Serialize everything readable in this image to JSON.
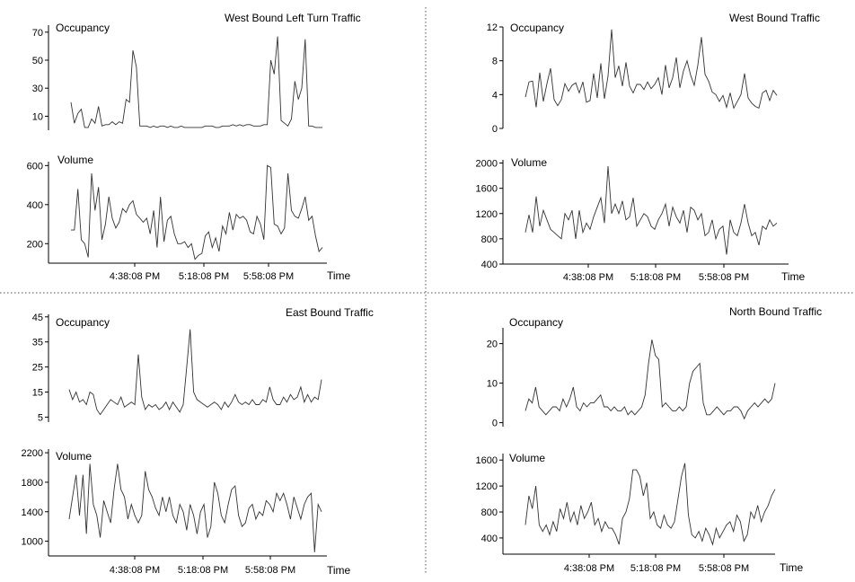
{
  "chart_data": [
    {
      "type": "line",
      "title": "West Bound Left Turn Traffic",
      "xlabel": "Time",
      "x_ticks": [
        "4:38:08 PM",
        "5:18:08 PM",
        "5:58:08 PM"
      ],
      "subplots": [
        {
          "ylabel": "Occupancy",
          "ylim": [
            0,
            75
          ],
          "yticks": [
            10,
            30,
            50,
            70
          ],
          "values": [
            20,
            5,
            12,
            15,
            2,
            2,
            8,
            5,
            17,
            3,
            4,
            4,
            6,
            4,
            6,
            5,
            22,
            20,
            57,
            45,
            3,
            3,
            3,
            2,
            3,
            2,
            3,
            3,
            2,
            3,
            2,
            2,
            3,
            2,
            2,
            2,
            2,
            2,
            2,
            3,
            3,
            3,
            2,
            2,
            3,
            3,
            3,
            4,
            3,
            4,
            3,
            4,
            4,
            3,
            3,
            3,
            4,
            4,
            50,
            40,
            67,
            7,
            5,
            3,
            8,
            35,
            22,
            30,
            65,
            3,
            3,
            2,
            2,
            2
          ]
        },
        {
          "ylabel": "Volume",
          "ylim": [
            100,
            620
          ],
          "yticks": [
            200,
            400,
            600
          ],
          "values": [
            270,
            270,
            480,
            220,
            200,
            130,
            560,
            370,
            490,
            220,
            300,
            440,
            330,
            280,
            310,
            380,
            360,
            400,
            420,
            350,
            330,
            310,
            330,
            250,
            370,
            180,
            440,
            210,
            320,
            340,
            250,
            200,
            200,
            210,
            180,
            200,
            120,
            140,
            150,
            240,
            260,
            180,
            230,
            160,
            290,
            250,
            360,
            270,
            350,
            330,
            340,
            320,
            260,
            250,
            340,
            300,
            220,
            600,
            590,
            300,
            290,
            250,
            280,
            560,
            370,
            340,
            330,
            380,
            440,
            320,
            340,
            240,
            160,
            180
          ]
        },
        {
          "ylabel": "",
          "ylim": [
            0,
            1
          ],
          "yticks": [],
          "values": []
        }
      ]
    },
    {
      "type": "line",
      "title": "West Bound Traffic",
      "xlabel": "Time",
      "x_ticks": [
        "4:38:08 PM",
        "5:18:08 PM",
        "5:58:08 PM"
      ],
      "subplots": [
        {
          "ylabel": "Occupancy",
          "ylim": [
            0,
            12
          ],
          "yticks": [
            0,
            4,
            8,
            12
          ],
          "values": [
            3.7,
            5.5,
            5.6,
            2.5,
            6.6,
            3.2,
            5.3,
            7.1,
            3.4,
            2.7,
            3.4,
            5.3,
            4.4,
            5.1,
            5.4,
            4.2,
            5.5,
            3.1,
            3.3,
            6.5,
            3.6,
            7.7,
            3.5,
            6.2,
            11.7,
            6.0,
            7.4,
            5.0,
            7.8,
            5.0,
            4.2,
            5.2,
            5.2,
            4.6,
            5.5,
            4.7,
            5.2,
            6.0,
            4.0,
            7.5,
            4.8,
            6.0,
            8.4,
            4.8,
            6.8,
            8.0,
            6.3,
            5.1,
            7.5,
            10.8,
            6.4,
            5.6,
            4.3,
            4.0,
            3.2,
            3.9,
            2.5,
            4.2,
            2.4,
            3.2,
            4.0,
            6.5,
            3.6,
            3.0,
            2.6,
            2.4,
            4.2,
            4.5,
            3.3,
            4.5,
            3.9
          ]
        },
        {
          "ylabel": "Volume",
          "ylim": [
            400,
            2050
          ],
          "yticks": [
            400,
            800,
            1200,
            1600,
            2000
          ],
          "values": [
            900,
            1180,
            900,
            1470,
            1000,
            1250,
            1100,
            950,
            900,
            850,
            800,
            1200,
            1100,
            1250,
            800,
            1250,
            900,
            1050,
            950,
            1150,
            1300,
            1450,
            1050,
            1950,
            1200,
            1350,
            1200,
            1400,
            1100,
            1150,
            1450,
            1000,
            1100,
            1200,
            1150,
            1000,
            950,
            1100,
            1200,
            1350,
            1000,
            1300,
            1150,
            1050,
            1250,
            900,
            1300,
            1250,
            1100,
            1200,
            850,
            900,
            1100,
            800,
            950,
            1000,
            550,
            1100,
            900,
            850,
            1050,
            1350,
            1050,
            850,
            900,
            700,
            1000,
            950,
            1100,
            1000,
            1050
          ]
        },
        {
          "ylabel": "",
          "ylim": [
            0,
            1
          ],
          "yticks": [],
          "values": []
        }
      ]
    },
    {
      "type": "line",
      "title": "East Bound Traffic",
      "xlabel": "Time",
      "x_ticks": [
        "4:38:08 PM",
        "5:18:08 PM",
        "5:58:08 PM"
      ],
      "subplots": [
        {
          "ylabel": "Occupancy",
          "ylim": [
            3,
            46
          ],
          "yticks": [
            5,
            15,
            25,
            35,
            45
          ],
          "values": [
            16,
            12,
            15,
            11,
            12,
            10,
            15,
            14,
            8,
            6,
            8,
            10,
            12,
            11,
            10,
            13,
            9,
            10,
            11,
            10,
            30,
            13,
            8,
            10,
            9,
            10,
            8,
            9,
            11,
            8,
            11,
            9,
            7,
            10,
            25,
            40,
            15,
            12,
            11,
            10,
            9,
            10,
            11,
            10,
            8,
            11,
            9,
            11,
            14,
            11,
            10,
            11,
            10,
            12,
            10,
            10,
            12,
            11,
            17,
            12,
            10,
            10,
            13,
            11,
            14,
            12,
            13,
            17,
            11,
            14,
            11,
            13,
            12,
            20
          ]
        },
        {
          "ylabel": "Volume",
          "ylim": [
            800,
            2250
          ],
          "yticks": [
            1000,
            1400,
            1800,
            2200
          ],
          "values": [
            1300,
            1600,
            1900,
            1350,
            1900,
            1100,
            2050,
            1500,
            1350,
            1050,
            1550,
            1400,
            1250,
            1700,
            2050,
            1700,
            1600,
            1300,
            1500,
            1350,
            1250,
            1350,
            1950,
            1700,
            1600,
            1450,
            1350,
            1600,
            1400,
            1600,
            1350,
            1250,
            1500,
            1400,
            1150,
            1500,
            1350,
            1100,
            1400,
            1500,
            1050,
            1200,
            1800,
            1650,
            1350,
            1250,
            1500,
            1700,
            1750,
            1350,
            1200,
            1250,
            1450,
            1500,
            1300,
            1400,
            1350,
            1550,
            1500,
            1400,
            1650,
            1550,
            1650,
            1500,
            1300,
            1600,
            1450,
            1300,
            1500,
            1600,
            1650,
            850,
            1500,
            1400
          ]
        },
        {
          "ylabel": "",
          "ylim": [
            0,
            1
          ],
          "yticks": [],
          "values": []
        }
      ]
    },
    {
      "type": "line",
      "title": "North Bound Traffic",
      "xlabel": "Time",
      "x_ticks": [
        "4:38:08 PM",
        "5:18:08 PM",
        "5:58:08 PM"
      ],
      "subplots": [
        {
          "ylabel": "Occupancy",
          "ylim": [
            -1,
            24
          ],
          "yticks": [
            0,
            10,
            20
          ],
          "values": [
            3,
            6,
            5,
            9,
            4,
            3,
            2,
            3,
            4,
            4,
            3,
            6,
            4,
            6,
            9,
            4,
            3,
            5,
            4,
            5,
            5,
            6,
            7,
            4,
            4,
            3,
            4,
            3,
            3,
            4,
            2,
            3,
            2,
            3,
            4,
            7,
            15,
            21,
            17,
            16,
            4,
            5,
            4,
            3,
            3,
            4,
            3,
            4,
            10,
            13,
            14,
            15,
            5,
            2,
            2,
            3,
            4,
            3,
            2,
            3,
            3,
            4,
            4,
            3,
            1,
            3,
            4,
            5,
            4,
            5,
            6,
            5,
            6,
            10
          ]
        },
        {
          "ylabel": "Volume",
          "ylim": [
            150,
            1700
          ],
          "yticks": [
            400,
            800,
            1200,
            1600
          ],
          "values": [
            600,
            1050,
            850,
            1200,
            600,
            500,
            600,
            450,
            650,
            500,
            850,
            700,
            950,
            650,
            800,
            600,
            900,
            700,
            800,
            950,
            600,
            700,
            500,
            650,
            550,
            550,
            450,
            300,
            700,
            800,
            1000,
            1450,
            1450,
            1350,
            1050,
            1250,
            700,
            800,
            600,
            550,
            750,
            600,
            550,
            650,
            1000,
            1350,
            1550,
            750,
            450,
            400,
            500,
            350,
            550,
            450,
            300,
            550,
            400,
            500,
            600,
            650,
            500,
            750,
            650,
            350,
            450,
            800,
            700,
            900,
            650,
            800,
            900,
            1050,
            1150
          ]
        },
        {
          "ylabel": "",
          "ylim": [
            0,
            1
          ],
          "yticks": [],
          "values": []
        }
      ]
    }
  ]
}
